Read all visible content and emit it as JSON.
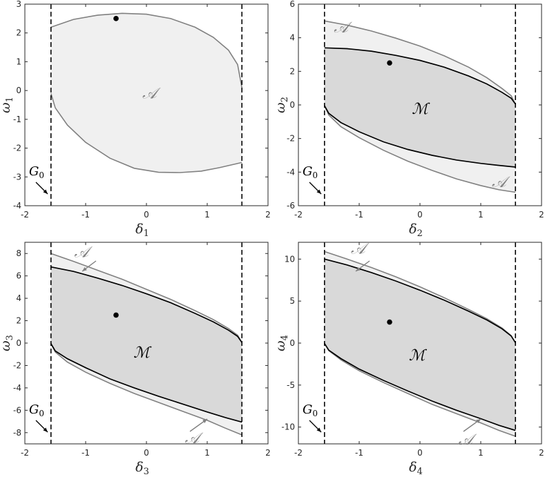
{
  "figure": {
    "colors": {
      "attraction_fill": "#f0f0f0",
      "attraction_line": "#808080",
      "inner_fill": "#d9d9d9",
      "inner_line": "#000000",
      "asymptote": "#000000",
      "point": "#000000",
      "frame": "#262626"
    }
  },
  "chart_data": [
    {
      "type": "area",
      "xlabel": "δ",
      "xlabel_sub": "1",
      "ylabel": "ω",
      "ylabel_sub": "1",
      "xlim": [
        -2,
        2
      ],
      "ylim": [
        -4,
        3
      ],
      "xticks": [
        -2,
        -1,
        0,
        1,
        2
      ],
      "yticks": [
        -4,
        -3,
        -2,
        -1,
        0,
        1,
        2,
        3
      ],
      "asymptotes_x": [
        -1.5708,
        1.5708
      ],
      "point": {
        "x": -0.5,
        "y": 2.5
      },
      "outer_region": {
        "label": "𝒜",
        "upper": [
          [
            -1.5708,
            2.2
          ],
          [
            -1.2,
            2.47
          ],
          [
            -0.8,
            2.62
          ],
          [
            -0.4,
            2.68
          ],
          [
            0,
            2.65
          ],
          [
            0.4,
            2.5
          ],
          [
            0.8,
            2.2
          ],
          [
            1.1,
            1.85
          ],
          [
            1.35,
            1.4
          ],
          [
            1.5,
            0.9
          ],
          [
            1.5708,
            0.1
          ]
        ],
        "lower": [
          [
            -1.5708,
            -0.1
          ],
          [
            -1.5,
            -0.6
          ],
          [
            -1.3,
            -1.2
          ],
          [
            -1.0,
            -1.8
          ],
          [
            -0.6,
            -2.35
          ],
          [
            -0.2,
            -2.7
          ],
          [
            0.2,
            -2.84
          ],
          [
            0.55,
            -2.85
          ],
          [
            0.9,
            -2.8
          ],
          [
            1.2,
            -2.68
          ],
          [
            1.5708,
            -2.5
          ]
        ]
      },
      "label_pos": {
        "x": 0.05,
        "y": -0.1
      },
      "g0_label": "G",
      "g0_sub": "0"
    },
    {
      "type": "area",
      "xlabel": "δ",
      "xlabel_sub": "2",
      "ylabel": "ω",
      "ylabel_sub": "2",
      "xlim": [
        -2,
        2
      ],
      "ylim": [
        -6,
        6
      ],
      "xticks": [
        -2,
        -1,
        0,
        1,
        2
      ],
      "yticks": [
        -6,
        -4,
        -2,
        0,
        2,
        4,
        6
      ],
      "asymptotes_x": [
        -1.5708,
        1.5708
      ],
      "point": {
        "x": -0.5,
        "y": 2.5
      },
      "outer_region": {
        "label": "𝒜",
        "upper": [
          [
            -1.5708,
            5.0
          ],
          [
            -1.2,
            4.75
          ],
          [
            -0.8,
            4.4
          ],
          [
            -0.4,
            3.98
          ],
          [
            0,
            3.5
          ],
          [
            0.4,
            2.92
          ],
          [
            0.8,
            2.25
          ],
          [
            1.1,
            1.62
          ],
          [
            1.35,
            0.98
          ],
          [
            1.5,
            0.55
          ],
          [
            1.5708,
            0.05
          ]
        ],
        "lower": [
          [
            -1.5708,
            -0.05
          ],
          [
            -1.5,
            -0.6
          ],
          [
            -1.3,
            -1.3
          ],
          [
            -1.0,
            -1.95
          ],
          [
            -0.6,
            -2.7
          ],
          [
            -0.2,
            -3.35
          ],
          [
            0.2,
            -3.9
          ],
          [
            0.6,
            -4.4
          ],
          [
            1.0,
            -4.8
          ],
          [
            1.3,
            -5.05
          ],
          [
            1.5708,
            -5.2
          ]
        ]
      },
      "inner_region": {
        "label": "ℳ",
        "upper": [
          [
            -1.5708,
            3.4
          ],
          [
            -1.2,
            3.35
          ],
          [
            -0.8,
            3.2
          ],
          [
            -0.4,
            2.95
          ],
          [
            0,
            2.65
          ],
          [
            0.4,
            2.25
          ],
          [
            0.8,
            1.72
          ],
          [
            1.1,
            1.25
          ],
          [
            1.35,
            0.75
          ],
          [
            1.5,
            0.4
          ],
          [
            1.5708,
            0.05
          ]
        ],
        "lower": [
          [
            -1.5708,
            -0.05
          ],
          [
            -1.5,
            -0.5
          ],
          [
            -1.3,
            -1.05
          ],
          [
            -1.0,
            -1.6
          ],
          [
            -0.6,
            -2.2
          ],
          [
            -0.2,
            -2.65
          ],
          [
            0.2,
            -3.0
          ],
          [
            0.6,
            -3.28
          ],
          [
            1.0,
            -3.48
          ],
          [
            1.3,
            -3.6
          ],
          [
            1.5708,
            -3.7
          ]
        ]
      },
      "outer_label_pos_top": {
        "x": -1.3,
        "y": 4.6
      },
      "outer_label_pos_bottom": {
        "x": 1.3,
        "y": -4.6
      },
      "inner_label_pos": {
        "x": 0,
        "y": -0.2
      },
      "g0_label": "G",
      "g0_sub": "0"
    },
    {
      "type": "area",
      "xlabel": "δ",
      "xlabel_sub": "3",
      "ylabel": "ω",
      "ylabel_sub": "3",
      "xlim": [
        -2,
        2
      ],
      "ylim": [
        -9,
        9
      ],
      "xticks": [
        -2,
        -1,
        0,
        1,
        2
      ],
      "yticks": [
        -8,
        -6,
        -4,
        -2,
        0,
        2,
        4,
        6,
        8
      ],
      "asymptotes_x": [
        -1.5708,
        1.5708
      ],
      "point": {
        "x": -0.5,
        "y": 2.5
      },
      "outer_region": {
        "label": "𝒜",
        "upper": [
          [
            -1.5708,
            8.0
          ],
          [
            -1.2,
            7.3
          ],
          [
            -0.8,
            6.5
          ],
          [
            -0.4,
            5.7
          ],
          [
            0,
            4.8
          ],
          [
            0.4,
            3.9
          ],
          [
            0.8,
            2.9
          ],
          [
            1.1,
            2.1
          ],
          [
            1.35,
            1.3
          ],
          [
            1.5,
            0.7
          ],
          [
            1.5708,
            0.05
          ]
        ],
        "lower": [
          [
            -1.5708,
            -0.05
          ],
          [
            -1.5,
            -0.8
          ],
          [
            -1.3,
            -1.7
          ],
          [
            -1.0,
            -2.6
          ],
          [
            -0.6,
            -3.6
          ],
          [
            -0.2,
            -4.5
          ],
          [
            0.2,
            -5.3
          ],
          [
            0.6,
            -6.1
          ],
          [
            1.0,
            -6.9
          ],
          [
            1.3,
            -7.6
          ],
          [
            1.5708,
            -8.2
          ]
        ]
      },
      "inner_region": {
        "label": "ℳ",
        "upper": [
          [
            -1.5708,
            6.8
          ],
          [
            -1.2,
            6.4
          ],
          [
            -0.8,
            5.8
          ],
          [
            -0.4,
            5.15
          ],
          [
            0,
            4.4
          ],
          [
            0.4,
            3.6
          ],
          [
            0.8,
            2.65
          ],
          [
            1.1,
            1.9
          ],
          [
            1.35,
            1.15
          ],
          [
            1.5,
            0.6
          ],
          [
            1.5708,
            0.05
          ]
        ],
        "lower": [
          [
            -1.5708,
            -0.05
          ],
          [
            -1.5,
            -0.7
          ],
          [
            -1.3,
            -1.4
          ],
          [
            -1.0,
            -2.2
          ],
          [
            -0.6,
            -3.2
          ],
          [
            -0.2,
            -4.0
          ],
          [
            0.2,
            -4.75
          ],
          [
            0.6,
            -5.45
          ],
          [
            1.0,
            -6.15
          ],
          [
            1.3,
            -6.65
          ],
          [
            1.5708,
            -7.05
          ]
        ]
      },
      "outer_label_pos_top": {
        "x": -1.07,
        "y": 8.1
      },
      "outer_label_pos_bottom": {
        "x": 0.75,
        "y": -8.5
      },
      "inner_label_pos": {
        "x": -0.08,
        "y": -0.8
      },
      "g0_label": "G",
      "g0_sub": "0"
    },
    {
      "type": "area",
      "xlabel": "δ",
      "xlabel_sub": "4",
      "ylabel": "ω",
      "ylabel_sub": "4",
      "xlim": [
        -2,
        2
      ],
      "ylim": [
        -12,
        12
      ],
      "xticks": [
        -2,
        -1,
        0,
        1,
        2
      ],
      "yticks": [
        -10,
        -5,
        0,
        5,
        10
      ],
      "asymptotes_x": [
        -1.5708,
        1.5708
      ],
      "point": {
        "x": -0.5,
        "y": 2.5
      },
      "outer_region": {
        "label": "𝒜",
        "upper": [
          [
            -1.5708,
            10.9
          ],
          [
            -1.2,
            10.0
          ],
          [
            -0.8,
            9.0
          ],
          [
            -0.4,
            7.9
          ],
          [
            0,
            6.7
          ],
          [
            0.4,
            5.4
          ],
          [
            0.8,
            4.0
          ],
          [
            1.1,
            2.9
          ],
          [
            1.35,
            1.8
          ],
          [
            1.5,
            0.9
          ],
          [
            1.5708,
            0.05
          ]
        ],
        "lower": [
          [
            -1.5708,
            -0.05
          ],
          [
            -1.5,
            -0.9
          ],
          [
            -1.3,
            -2.0
          ],
          [
            -1.0,
            -3.3
          ],
          [
            -0.6,
            -4.7
          ],
          [
            -0.2,
            -6.0
          ],
          [
            0.2,
            -7.3
          ],
          [
            0.6,
            -8.4
          ],
          [
            1.0,
            -9.5
          ],
          [
            1.3,
            -10.4
          ],
          [
            1.5708,
            -11.1
          ]
        ]
      },
      "inner_region": {
        "label": "ℳ",
        "upper": [
          [
            -1.5708,
            10.0
          ],
          [
            -1.2,
            9.3
          ],
          [
            -0.8,
            8.4
          ],
          [
            -0.4,
            7.4
          ],
          [
            0,
            6.3
          ],
          [
            0.4,
            5.1
          ],
          [
            0.8,
            3.8
          ],
          [
            1.1,
            2.75
          ],
          [
            1.35,
            1.7
          ],
          [
            1.5,
            0.85
          ],
          [
            1.5708,
            0.05
          ]
        ],
        "lower": [
          [
            -1.5708,
            -0.05
          ],
          [
            -1.5,
            -0.85
          ],
          [
            -1.3,
            -1.85
          ],
          [
            -1.0,
            -3.1
          ],
          [
            -0.6,
            -4.45
          ],
          [
            -0.2,
            -5.7
          ],
          [
            0.2,
            -6.9
          ],
          [
            0.6,
            -8.0
          ],
          [
            1.0,
            -9.0
          ],
          [
            1.3,
            -9.8
          ],
          [
            1.5708,
            -10.4
          ]
        ]
      },
      "outer_label_pos_top": {
        "x": -1.02,
        "y": 11.2
      },
      "outer_label_pos_bottom": {
        "x": 0.75,
        "y": -11.5
      },
      "inner_label_pos": {
        "x": -0.05,
        "y": -1.4
      },
      "g0_label": "G",
      "g0_sub": "0"
    }
  ]
}
